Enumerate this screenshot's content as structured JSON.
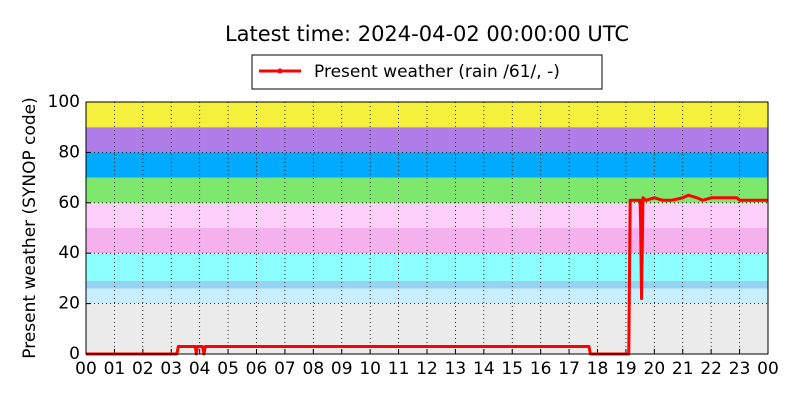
{
  "chart_data": {
    "type": "line",
    "title": "Latest time: 2024-04-02 00:00:00 UTC",
    "y_label": "Present weather (SYNOP code)",
    "x": [
      0,
      3.2,
      3.25,
      3.85,
      3.88,
      3.92,
      4.1,
      4.15,
      4.2,
      4.25,
      17.7,
      17.75,
      19.1,
      19.15,
      19.5,
      19.52,
      19.55,
      19.6,
      19.7,
      20.0,
      20.3,
      20.6,
      21.0,
      21.2,
      21.5,
      21.7,
      22.0,
      22.5,
      22.9,
      23.0,
      24.0
    ],
    "series": [
      {
        "name": "Present weather (rain /61/, -)",
        "color": "#ff0000",
        "values": [
          0,
          0,
          3,
          3,
          0,
          3,
          3,
          0,
          3,
          3,
          3,
          0,
          0,
          61,
          61,
          50,
          22,
          62,
          61,
          62,
          61,
          61,
          62,
          63,
          62,
          61,
          62,
          62,
          62,
          61,
          61
        ]
      }
    ],
    "xlim": [
      0,
      24
    ],
    "xticks": [
      {
        "value": 0,
        "label": "00"
      },
      {
        "value": 1,
        "label": "01"
      },
      {
        "value": 2,
        "label": "02"
      },
      {
        "value": 3,
        "label": "03"
      },
      {
        "value": 4,
        "label": "04"
      },
      {
        "value": 5,
        "label": "05"
      },
      {
        "value": 6,
        "label": "06"
      },
      {
        "value": 7,
        "label": "07"
      },
      {
        "value": 8,
        "label": "08"
      },
      {
        "value": 9,
        "label": "09"
      },
      {
        "value": 10,
        "label": "10"
      },
      {
        "value": 11,
        "label": "11"
      },
      {
        "value": 12,
        "label": "12"
      },
      {
        "value": 13,
        "label": "13"
      },
      {
        "value": 14,
        "label": "14"
      },
      {
        "value": 15,
        "label": "15"
      },
      {
        "value": 16,
        "label": "16"
      },
      {
        "value": 17,
        "label": "17"
      },
      {
        "value": 18,
        "label": "18"
      },
      {
        "value": 19,
        "label": "19"
      },
      {
        "value": 20,
        "label": "20"
      },
      {
        "value": 21,
        "label": "21"
      },
      {
        "value": 22,
        "label": "22"
      },
      {
        "value": 23,
        "label": "23"
      },
      {
        "value": 24,
        "label": "00"
      }
    ],
    "ylim": [
      0,
      100
    ],
    "yticks": [
      0,
      20,
      40,
      60,
      80,
      100
    ],
    "grid": true,
    "bands": [
      {
        "from": 0,
        "to": 20,
        "color": "#ebebeb"
      },
      {
        "from": 20,
        "to": 26,
        "color": "#c8eeff"
      },
      {
        "from": 26,
        "to": 29,
        "color": "#96d2f2"
      },
      {
        "from": 29,
        "to": 40,
        "color": "#8cffff"
      },
      {
        "from": 40,
        "to": 50,
        "color": "#f5b0ee"
      },
      {
        "from": 50,
        "to": 60,
        "color": "#fdd0f9"
      },
      {
        "from": 60,
        "to": 70,
        "color": "#7ee86e"
      },
      {
        "from": 70,
        "to": 80,
        "color": "#00aaff"
      },
      {
        "from": 80,
        "to": 90,
        "color": "#b07ce8"
      },
      {
        "from": 90,
        "to": 100,
        "color": "#f5f03c"
      }
    ]
  }
}
